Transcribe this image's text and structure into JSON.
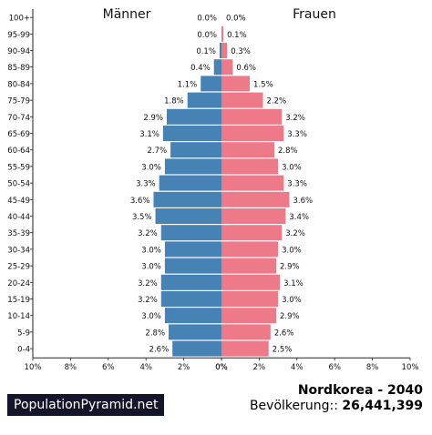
{
  "chart_data": {
    "type": "bar",
    "orientation": "horizontal-population-pyramid",
    "left_label": "Männer",
    "right_label": "Frauen",
    "categories": [
      "100+",
      "95-99",
      "90-94",
      "85-89",
      "80-84",
      "75-79",
      "70-74",
      "65-69",
      "60-64",
      "55-59",
      "50-54",
      "45-49",
      "40-44",
      "35-39",
      "30-34",
      "25-29",
      "20-24",
      "15-19",
      "10-14",
      "5-9",
      "0-4"
    ],
    "series": [
      {
        "name": "Männer",
        "color": "#4682b4",
        "values": [
          0.0,
          0.0,
          0.1,
          0.4,
          1.1,
          1.8,
          2.9,
          3.1,
          2.7,
          3.0,
          3.3,
          3.6,
          3.5,
          3.2,
          3.0,
          3.0,
          3.2,
          3.2,
          3.0,
          2.8,
          2.6
        ],
        "labels": [
          "0.0%",
          "0.0%",
          "0.1%",
          "0.4%",
          "1.1%",
          "1.8%",
          "2.9%",
          "3.1%",
          "2.7%",
          "3.0%",
          "3.3%",
          "3.6%",
          "3.5%",
          "3.2%",
          "3.0%",
          "3.0%",
          "3.2%",
          "3.2%",
          "3.0%",
          "2.8%",
          "2.6%"
        ]
      },
      {
        "name": "Frauen",
        "color": "#ee7989",
        "values": [
          0.0,
          0.1,
          0.3,
          0.6,
          1.5,
          2.2,
          3.2,
          3.3,
          2.8,
          3.0,
          3.3,
          3.6,
          3.4,
          3.2,
          3.0,
          2.9,
          3.1,
          3.0,
          2.9,
          2.6,
          2.5
        ],
        "labels": [
          "0.0%",
          "0.1%",
          "0.3%",
          "0.6%",
          "1.5%",
          "2.2%",
          "3.2%",
          "3.3%",
          "2.8%",
          "3.0%",
          "3.3%",
          "3.6%",
          "3.4%",
          "3.2%",
          "3.0%",
          "2.9%",
          "3.1%",
          "3.0%",
          "2.9%",
          "2.6%",
          "2.5%"
        ]
      }
    ],
    "xlim": [
      0,
      10
    ],
    "xticks_left": [
      "10%",
      "8%",
      "6%",
      "4%",
      "2%",
      "0%"
    ],
    "xticks_right": [
      "0%",
      "2%",
      "4%",
      "6%",
      "8%",
      "10%"
    ],
    "grid": false
  },
  "footer": {
    "brand": "PopulationPyramid.net",
    "title": "Nordkorea - 2040",
    "population_label": "Bevölkerung::",
    "population_value": "26,441,399"
  }
}
